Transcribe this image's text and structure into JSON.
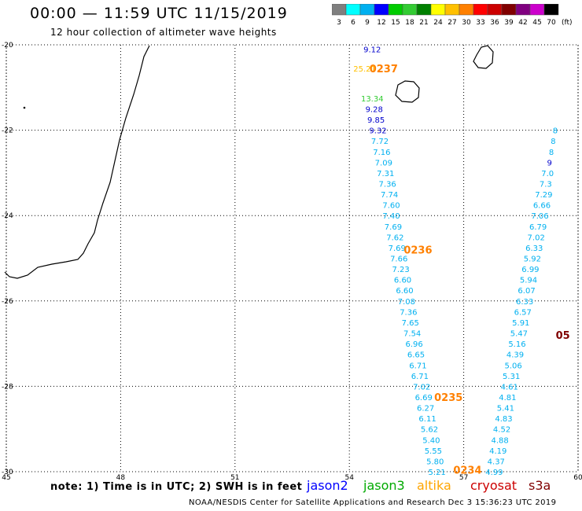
{
  "header": {
    "title": "00:00 — 11:59 UTC 11/15/2019",
    "subtitle": "12 hour collection of altimeter wave heights"
  },
  "colorbar": {
    "unit": "(ft)",
    "ticks": [
      "3",
      "6",
      "9",
      "12",
      "15",
      "18",
      "21",
      "24",
      "27",
      "30",
      "33",
      "36",
      "39",
      "42",
      "45",
      "70"
    ],
    "colors": [
      "#7f7f7f",
      "#00ffff",
      "#00b0f0",
      "#0000ff",
      "#00cc00",
      "#33cc33",
      "#008000",
      "#ffff00",
      "#ffc000",
      "#ff8000",
      "#ff0000",
      "#cc0000",
      "#800000",
      "#800080",
      "#cc00cc",
      "#000000"
    ]
  },
  "map": {
    "lon_labels": [
      "45",
      "48",
      "51",
      "54",
      "57",
      "60"
    ],
    "lat_labels": [
      "-20",
      "-22",
      "-24",
      "-26",
      "-28",
      "-30"
    ],
    "lon_range": [
      45,
      60
    ],
    "lat_range": [
      -20,
      -30
    ]
  },
  "tracks": [
    {
      "name": "track-a",
      "points": [
        {
          "v": "9.12",
          "lon": 54.6,
          "lat": -20.1,
          "c": "#0000cc"
        },
        {
          "v": "13.34",
          "lon": 54.6,
          "lat": -21.25,
          "c": "#33cc33"
        },
        {
          "v": "9.28",
          "lon": 54.65,
          "lat": -21.5,
          "c": "#0000cc"
        },
        {
          "v": "9.85",
          "lon": 54.7,
          "lat": -21.75,
          "c": "#0000cc"
        },
        {
          "v": "9.32",
          "lon": 54.75,
          "lat": -22.0,
          "c": "#0000cc"
        },
        {
          "v": "7.72",
          "lon": 54.8,
          "lat": -22.25,
          "c": "#00b0f0"
        },
        {
          "v": "7.16",
          "lon": 54.85,
          "lat": -22.5,
          "c": "#00b0f0"
        },
        {
          "v": "7.09",
          "lon": 54.9,
          "lat": -22.75,
          "c": "#00b0f0"
        },
        {
          "v": "7.31",
          "lon": 54.95,
          "lat": -23.0,
          "c": "#00b0f0"
        },
        {
          "v": "7.36",
          "lon": 55.0,
          "lat": -23.25,
          "c": "#00b0f0"
        },
        {
          "v": "7.74",
          "lon": 55.05,
          "lat": -23.5,
          "c": "#00b0f0"
        },
        {
          "v": "7.60",
          "lon": 55.1,
          "lat": -23.75,
          "c": "#00b0f0"
        },
        {
          "v": "7.40",
          "lon": 55.1,
          "lat": -24.0,
          "c": "#00b0f0"
        },
        {
          "v": "7.69",
          "lon": 55.15,
          "lat": -24.25,
          "c": "#00b0f0"
        },
        {
          "v": "7.62",
          "lon": 55.2,
          "lat": -24.5,
          "c": "#00b0f0"
        },
        {
          "v": "7.69",
          "lon": 55.25,
          "lat": -24.75,
          "c": "#00b0f0"
        },
        {
          "v": "7.66",
          "lon": 55.3,
          "lat": -25.0,
          "c": "#00b0f0"
        },
        {
          "v": "7.23",
          "lon": 55.35,
          "lat": -25.25,
          "c": "#00b0f0"
        },
        {
          "v": "6.60",
          "lon": 55.4,
          "lat": -25.5,
          "c": "#00b0f0"
        },
        {
          "v": "6.60",
          "lon": 55.45,
          "lat": -25.75,
          "c": "#00b0f0"
        },
        {
          "v": "7.08",
          "lon": 55.5,
          "lat": -26.0,
          "c": "#00b0f0"
        },
        {
          "v": "7.36",
          "lon": 55.55,
          "lat": -26.25,
          "c": "#00b0f0"
        },
        {
          "v": "7.65",
          "lon": 55.6,
          "lat": -26.5,
          "c": "#00b0f0"
        },
        {
          "v": "7.54",
          "lon": 55.65,
          "lat": -26.75,
          "c": "#00b0f0"
        },
        {
          "v": "6.96",
          "lon": 55.7,
          "lat": -27.0,
          "c": "#00b0f0"
        },
        {
          "v": "6.65",
          "lon": 55.75,
          "lat": -27.25,
          "c": "#00b0f0"
        },
        {
          "v": "6.71",
          "lon": 55.8,
          "lat": -27.5,
          "c": "#00b0f0"
        },
        {
          "v": "6.71",
          "lon": 55.85,
          "lat": -27.75,
          "c": "#00b0f0"
        },
        {
          "v": "7.02",
          "lon": 55.9,
          "lat": -28.0,
          "c": "#00b0f0"
        },
        {
          "v": "6.69",
          "lon": 55.95,
          "lat": -28.25,
          "c": "#00b0f0"
        },
        {
          "v": "6.27",
          "lon": 56.0,
          "lat": -28.5,
          "c": "#00b0f0"
        },
        {
          "v": "6.11",
          "lon": 56.05,
          "lat": -28.75,
          "c": "#00b0f0"
        },
        {
          "v": "5.62",
          "lon": 56.1,
          "lat": -29.0,
          "c": "#00b0f0"
        },
        {
          "v": "5.40",
          "lon": 56.15,
          "lat": -29.25,
          "c": "#00b0f0"
        },
        {
          "v": "5.55",
          "lon": 56.2,
          "lat": -29.5,
          "c": "#00b0f0"
        },
        {
          "v": "5.80",
          "lon": 56.25,
          "lat": -29.75,
          "c": "#00b0f0"
        },
        {
          "v": "5.21",
          "lon": 56.3,
          "lat": -30.0,
          "c": "#00b0f0"
        }
      ]
    },
    {
      "name": "track-b",
      "points": [
        {
          "v": "25.21",
          "lon": 54.4,
          "lat": -20.55,
          "c": "#ffc000"
        }
      ]
    },
    {
      "name": "track-c",
      "points": [
        {
          "v": "4.99",
          "lon": 57.8,
          "lat": -30.0,
          "c": "#00b0f0"
        },
        {
          "v": "4.37",
          "lon": 57.85,
          "lat": -29.75,
          "c": "#00b0f0"
        },
        {
          "v": "4.19",
          "lon": 57.9,
          "lat": -29.5,
          "c": "#00b0f0"
        },
        {
          "v": "4.88",
          "lon": 57.95,
          "lat": -29.25,
          "c": "#00b0f0"
        },
        {
          "v": "4.52",
          "lon": 58.0,
          "lat": -29.0,
          "c": "#00b0f0"
        },
        {
          "v": "4.83",
          "lon": 58.05,
          "lat": -28.75,
          "c": "#00b0f0"
        },
        {
          "v": "5.41",
          "lon": 58.1,
          "lat": -28.5,
          "c": "#00b0f0"
        },
        {
          "v": "4.81",
          "lon": 58.15,
          "lat": -28.25,
          "c": "#00b0f0"
        },
        {
          "v": "4.61",
          "lon": 58.2,
          "lat": -28.0,
          "c": "#00b0f0"
        },
        {
          "v": "5.31",
          "lon": 58.25,
          "lat": -27.75,
          "c": "#00b0f0"
        },
        {
          "v": "5.06",
          "lon": 58.3,
          "lat": -27.5,
          "c": "#00b0f0"
        },
        {
          "v": "4.39",
          "lon": 58.35,
          "lat": -27.25,
          "c": "#00b0f0"
        },
        {
          "v": "5.16",
          "lon": 58.4,
          "lat": -27.0,
          "c": "#00b0f0"
        },
        {
          "v": "5.47",
          "lon": 58.45,
          "lat": -26.75,
          "c": "#00b0f0"
        },
        {
          "v": "5.91",
          "lon": 58.5,
          "lat": -26.5,
          "c": "#00b0f0"
        },
        {
          "v": "6.57",
          "lon": 58.55,
          "lat": -26.25,
          "c": "#00b0f0"
        },
        {
          "v": "6.33",
          "lon": 58.6,
          "lat": -26.0,
          "c": "#00b0f0"
        },
        {
          "v": "6.07",
          "lon": 58.65,
          "lat": -25.75,
          "c": "#00b0f0"
        },
        {
          "v": "5.94",
          "lon": 58.7,
          "lat": -25.5,
          "c": "#00b0f0"
        },
        {
          "v": "6.99",
          "lon": 58.75,
          "lat": -25.25,
          "c": "#00b0f0"
        },
        {
          "v": "5.92",
          "lon": 58.8,
          "lat": -25.0,
          "c": "#00b0f0"
        },
        {
          "v": "6.33",
          "lon": 58.85,
          "lat": -24.75,
          "c": "#00b0f0"
        },
        {
          "v": "7.02",
          "lon": 58.9,
          "lat": -24.5,
          "c": "#00b0f0"
        },
        {
          "v": "6.79",
          "lon": 58.95,
          "lat": -24.25,
          "c": "#00b0f0"
        },
        {
          "v": "7.06",
          "lon": 59.0,
          "lat": -24.0,
          "c": "#00b0f0"
        },
        {
          "v": "6.66",
          "lon": 59.05,
          "lat": -23.75,
          "c": "#00b0f0"
        },
        {
          "v": "7.29",
          "lon": 59.1,
          "lat": -23.5,
          "c": "#00b0f0"
        },
        {
          "v": "7.3",
          "lon": 59.15,
          "lat": -23.25,
          "c": "#00b0f0"
        },
        {
          "v": "7.0",
          "lon": 59.2,
          "lat": -23.0,
          "c": "#00b0f0"
        },
        {
          "v": "9",
          "lon": 59.25,
          "lat": -22.75,
          "c": "#0000cc"
        },
        {
          "v": "8",
          "lon": 59.3,
          "lat": -22.5,
          "c": "#00b0f0"
        },
        {
          "v": "8",
          "lon": 59.35,
          "lat": -22.25,
          "c": "#00b0f0"
        },
        {
          "v": "8",
          "lon": 59.4,
          "lat": -22.0,
          "c": "#00b0f0"
        }
      ]
    }
  ],
  "time_labels": [
    {
      "t": "0237",
      "lon": 54.9,
      "lat": -20.55,
      "c": "#ff8000"
    },
    {
      "t": "0236",
      "lon": 55.8,
      "lat": -24.8,
      "c": "#ff8000"
    },
    {
      "t": "0235",
      "lon": 56.6,
      "lat": -28.25,
      "c": "#ff8000"
    },
    {
      "t": "0234",
      "lon": 57.1,
      "lat": -29.95,
      "c": "#ff8000"
    },
    {
      "t": "05",
      "lon": 59.6,
      "lat": -26.8,
      "c": "#800000"
    }
  ],
  "footer": {
    "note": "note: 1) Time is in UTC; 2) SWH is in feet",
    "credit": "NOAA/NESDIS Center for Satellite Applications and Research    Dec  3 15:36:23 UTC 2019",
    "legend": [
      {
        "label": "jason2",
        "color": "#0000ff"
      },
      {
        "label": "jason3",
        "color": "#00aa00"
      },
      {
        "label": "altika",
        "color": "#ffa500"
      },
      {
        "label": "cryosat",
        "color": "#cc0000"
      },
      {
        "label": "s3a",
        "color": "#800000"
      }
    ]
  }
}
